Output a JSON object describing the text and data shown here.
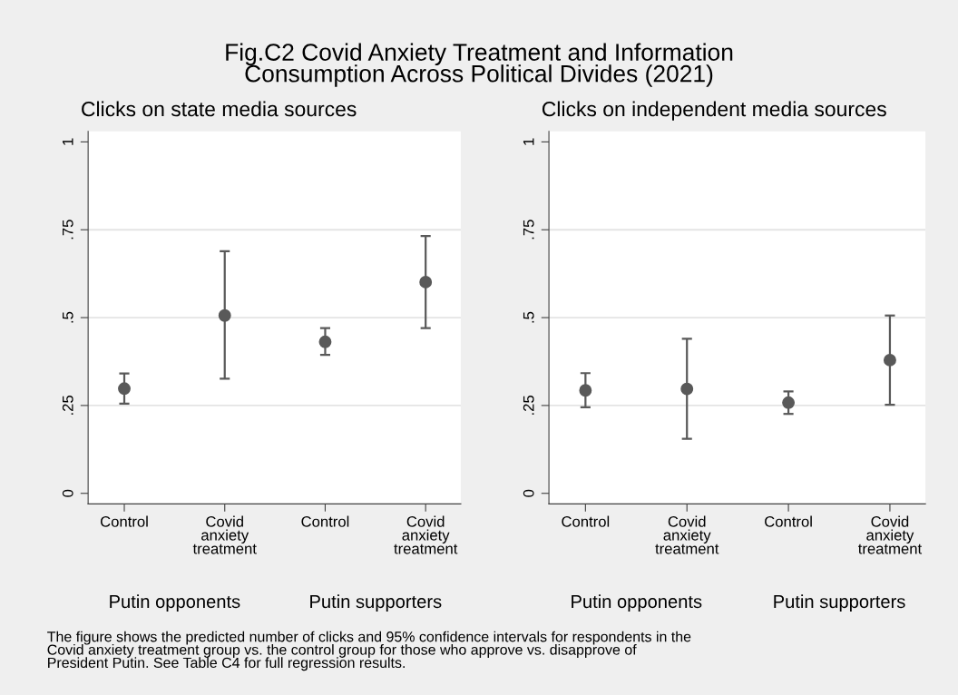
{
  "chart_data": [
    {
      "type": "scatter",
      "title": "Clicks on state media sources",
      "categories": [
        "Control",
        "Covid\nanxiety\ntreatment",
        "Control",
        "Covid\nanxiety\ntreatment"
      ],
      "series": [
        {
          "color": "#595959",
          "values": [
            0.298,
            0.506,
            0.431,
            0.601
          ],
          "errors": [
            [
              0.255,
              0.341
            ],
            [
              0.326,
              0.689
            ],
            [
              0.394,
              0.47
            ],
            [
              0.47,
              0.732
            ]
          ]
        }
      ],
      "ylim": [
        -0.03,
        1.03
      ],
      "yticks": [
        {
          "value": 0,
          "label": "0"
        },
        {
          "value": 0.25,
          "label": ".25"
        },
        {
          "value": 0.5,
          "label": ".5"
        },
        {
          "value": 0.75,
          "label": ".75"
        },
        {
          "value": 1,
          "label": "1"
        }
      ],
      "grid": "y",
      "marker": "circle",
      "legend": false,
      "annotations": [
        "Fig.C2 Covid Anxiety Treatment and Information\nConsumption Across Political Divides (2021)",
        "Putin opponents",
        "Putin supporters",
        "The figure shows the predicted number of clicks and 95% confidence intervals for respondents in the\nCovid anxiety treatment group vs. the control group for those who approve vs. disapprove of\nPresident Putin. See Table C4 for full regression results."
      ]
    },
    {
      "type": "scatter",
      "title": "Clicks on independent media sources",
      "categories": [
        "Control",
        "Covid\nanxiety\ntreatment",
        "Control",
        "Covid\nanxiety\ntreatment"
      ],
      "series": [
        {
          "color": "#595959",
          "values": [
            0.293,
            0.297,
            0.258,
            0.379
          ],
          "errors": [
            [
              0.245,
              0.342
            ],
            [
              0.155,
              0.44
            ],
            [
              0.226,
              0.29
            ],
            [
              0.252,
              0.506
            ]
          ]
        }
      ],
      "ylim": [
        -0.03,
        1.03
      ],
      "yticks": [
        {
          "value": 0,
          "label": "0"
        },
        {
          "value": 0.25,
          "label": ".25"
        },
        {
          "value": 0.5,
          "label": ".5"
        },
        {
          "value": 0.75,
          "label": ".75"
        },
        {
          "value": 1,
          "label": "1"
        }
      ],
      "grid": "y",
      "marker": "circle",
      "legend": false,
      "annotations": [
        "Putin opponents",
        "Putin supporters"
      ]
    }
  ]
}
